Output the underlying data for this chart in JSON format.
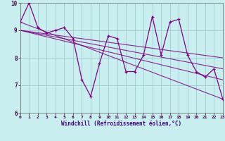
{
  "x": [
    0,
    1,
    2,
    3,
    4,
    5,
    6,
    7,
    8,
    9,
    10,
    11,
    12,
    13,
    14,
    15,
    16,
    17,
    18,
    19,
    20,
    21,
    22,
    23
  ],
  "y_main": [
    9.3,
    10.0,
    9.1,
    8.9,
    9.0,
    9.1,
    8.7,
    7.2,
    6.6,
    7.8,
    8.8,
    8.7,
    7.5,
    7.5,
    8.1,
    9.5,
    8.1,
    9.3,
    9.4,
    8.1,
    7.5,
    7.3,
    7.6,
    6.5
  ],
  "line_color": "#800080",
  "bg_color": "#c8eef0",
  "grid_color": "#a0cccc",
  "xlabel": "Windchill (Refroidissement éolien,°C)",
  "ylim": [
    6,
    10
  ],
  "xlim": [
    0,
    23
  ],
  "yticks": [
    6,
    7,
    8,
    9,
    10
  ],
  "xticks": [
    0,
    1,
    2,
    3,
    4,
    5,
    6,
    7,
    8,
    9,
    10,
    11,
    12,
    13,
    14,
    15,
    16,
    17,
    18,
    19,
    20,
    21,
    22,
    23
  ],
  "trend_lines": [
    {
      "x0": 0,
      "y0": 9.3,
      "x1": 23,
      "y1": 6.5
    },
    {
      "x0": 0,
      "y0": 9.0,
      "x1": 23,
      "y1": 8.0
    },
    {
      "x0": 0,
      "y0": 9.0,
      "x1": 23,
      "y1": 7.6
    },
    {
      "x0": 0,
      "y0": 9.0,
      "x1": 23,
      "y1": 7.2
    }
  ]
}
